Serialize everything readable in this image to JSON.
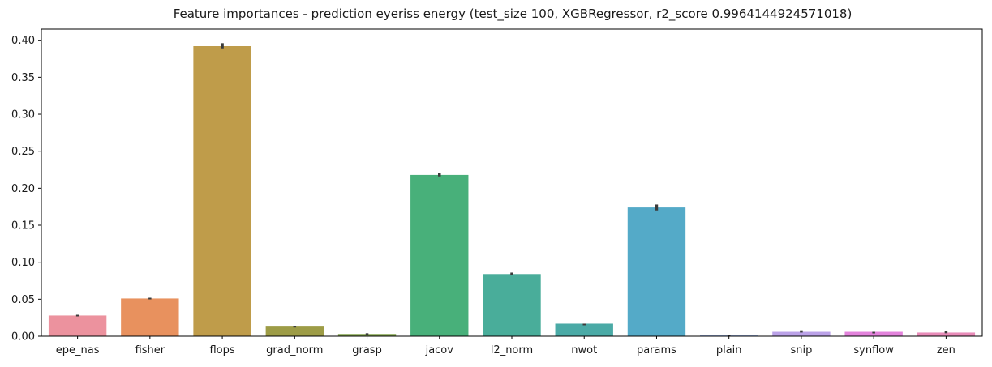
{
  "chart_data": {
    "type": "bar",
    "title": "Feature importances - prediction eyeriss energy (test_size 100, XGBRegressor, r2_score 0.9964144924571018)",
    "xlabel": "",
    "ylabel": "",
    "categories": [
      "epe_nas",
      "fisher",
      "flops",
      "grad_norm",
      "grasp",
      "jacov",
      "l2_norm",
      "nwot",
      "params",
      "plain",
      "snip",
      "synflow",
      "zen"
    ],
    "values": [
      0.028,
      0.051,
      0.392,
      0.013,
      0.003,
      0.218,
      0.084,
      0.017,
      0.174,
      0.001,
      0.006,
      0.006,
      0.005
    ],
    "error_low": [
      0.027,
      0.05,
      0.389,
      0.012,
      0.002,
      0.216,
      0.083,
      0.017,
      0.17,
      0.0,
      0.005,
      0.006,
      0.004
    ],
    "error_high": [
      0.029,
      0.052,
      0.396,
      0.014,
      0.004,
      0.221,
      0.086,
      0.017,
      0.178,
      0.002,
      0.008,
      0.006,
      0.007
    ],
    "colors": [
      "#ec929e",
      "#e8915e",
      "#bf9c4a",
      "#9d9c46",
      "#80a24a",
      "#48b07a",
      "#49ad9a",
      "#4aaaa6",
      "#54aac8",
      "#8fa9e3",
      "#bba2e8",
      "#e383dc",
      "#e98cb9"
    ],
    "ylim": [
      0,
      0.415
    ],
    "yticks": [
      0.0,
      0.05,
      0.1,
      0.15,
      0.2,
      0.25,
      0.3,
      0.35,
      0.4
    ],
    "ytick_labels": [
      "0.00",
      "0.05",
      "0.10",
      "0.15",
      "0.20",
      "0.25",
      "0.30",
      "0.35",
      "0.40"
    ],
    "grid": false,
    "error_bar_color": "#3b3b3b"
  }
}
